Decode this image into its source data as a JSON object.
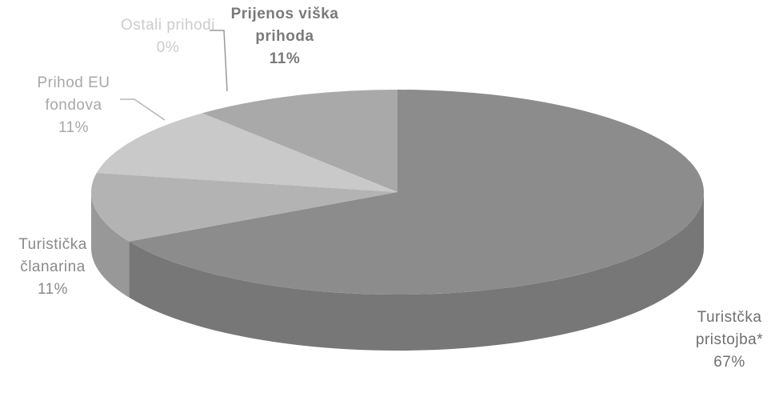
{
  "chart_data": {
    "type": "pie",
    "categories": [
      "Turistčka pristojba*",
      "Turistička članarina",
      "Prihod EU fondova",
      "Ostali prihodi",
      "Prijenos viška prihoda"
    ],
    "values": [
      67,
      11,
      11,
      0,
      11
    ],
    "value_labels": [
      "67%",
      "11%",
      "11%",
      "0%",
      "11%"
    ],
    "colors": [
      "#8c8c8c",
      "#b3b3b3",
      "#c9c9c9",
      "#dedede",
      "#a9a9a9"
    ]
  }
}
